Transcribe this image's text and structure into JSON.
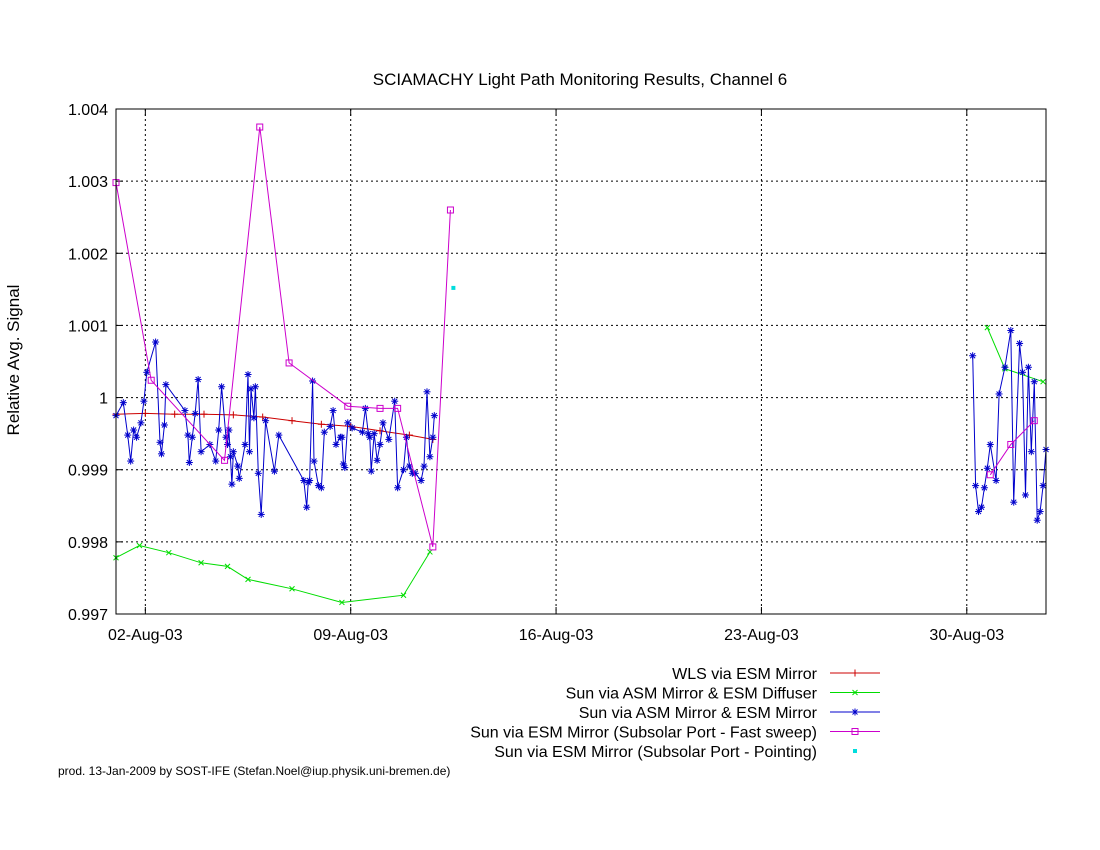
{
  "chart_data": {
    "type": "line",
    "title": "SCIAMACHY Light Path Monitoring Results, Channel 6",
    "xlabel": "",
    "ylabel": "Relative Avg. Signal",
    "xlim": [
      1.0,
      32.7
    ],
    "ylim": [
      0.997,
      1.004
    ],
    "x_unit": "day of August 2003",
    "x_ticks": [
      {
        "x": 2,
        "label": "02-Aug-03"
      },
      {
        "x": 9,
        "label": "09-Aug-03"
      },
      {
        "x": 16,
        "label": "16-Aug-03"
      },
      {
        "x": 23,
        "label": "23-Aug-03"
      },
      {
        "x": 30,
        "label": "30-Aug-03"
      }
    ],
    "y_ticks": [
      {
        "y": 0.997,
        "label": "0.997"
      },
      {
        "y": 0.998,
        "label": "0.998"
      },
      {
        "y": 0.999,
        "label": "0.999"
      },
      {
        "y": 1.0,
        "label": "1"
      },
      {
        "y": 1.001,
        "label": "1.001"
      },
      {
        "y": 1.002,
        "label": "1.002"
      },
      {
        "y": 1.003,
        "label": "1.003"
      },
      {
        "y": 1.004,
        "label": "1.004"
      }
    ],
    "grid": true,
    "legend_position": "bottom-right",
    "series": [
      {
        "name": "WLS via ESM Mirror",
        "color": "#cc0000",
        "marker": "plus",
        "line": true,
        "points": [
          [
            1.0,
            0.99977
          ],
          [
            2.0,
            0.99978
          ],
          [
            3.0,
            0.99977
          ],
          [
            4.0,
            0.99977
          ],
          [
            5.0,
            0.99976
          ],
          [
            6.0,
            0.99973
          ],
          [
            7.0,
            0.99968
          ],
          [
            8.0,
            0.99963
          ],
          [
            9.0,
            0.9996
          ],
          [
            10.0,
            0.99954
          ],
          [
            11.0,
            0.99948
          ],
          [
            11.8,
            0.99942
          ]
        ]
      },
      {
        "name": "Sun via ASM Mirror & ESM Diffuser",
        "color": "#00dd00",
        "marker": "x",
        "line": true,
        "points": [
          [
            1.0,
            0.99778
          ],
          [
            1.8,
            0.99795
          ],
          [
            2.8,
            0.99785
          ],
          [
            3.9,
            0.99771
          ],
          [
            4.8,
            0.99766
          ],
          [
            5.5,
            0.99748
          ],
          [
            7.0,
            0.99735
          ],
          [
            8.7,
            0.99716
          ],
          [
            10.8,
            0.99726
          ],
          [
            11.7,
            0.99786
          ],
          [
            30.7,
            1.00097
          ],
          [
            31.3,
            1.0004
          ],
          [
            32.6,
            1.00022
          ]
        ]
      },
      {
        "name": "Sun via ASM Mirror & ESM Mirror",
        "color": "#0000cc",
        "marker": "star",
        "line": true,
        "points": [
          [
            1.0,
            0.99975
          ],
          [
            1.25,
            0.99993
          ],
          [
            1.4,
            0.99948
          ],
          [
            1.5,
            0.99912
          ],
          [
            1.6,
            0.99955
          ],
          [
            1.7,
            0.99945
          ],
          [
            1.85,
            0.99965
          ],
          [
            1.95,
            0.99995
          ],
          [
            2.05,
            1.00035
          ],
          [
            2.35,
            1.00077
          ],
          [
            2.5,
            0.99938
          ],
          [
            2.55,
            0.99922
          ],
          [
            2.65,
            0.99962
          ],
          [
            2.7,
            1.00018
          ],
          [
            3.35,
            0.99982
          ],
          [
            3.45,
            0.99948
          ],
          [
            3.5,
            0.9991
          ],
          [
            3.6,
            0.99945
          ],
          [
            3.7,
            0.99978
          ],
          [
            3.8,
            1.00025
          ],
          [
            3.9,
            0.99925
          ],
          [
            4.2,
            0.99935
          ],
          [
            4.4,
            0.99912
          ],
          [
            4.5,
            0.99955
          ],
          [
            4.6,
            1.00015
          ],
          [
            4.75,
            0.99945
          ],
          [
            4.8,
            0.99935
          ],
          [
            4.85,
            0.99955
          ],
          [
            4.9,
            0.99918
          ],
          [
            4.95,
            0.9988
          ],
          [
            5.0,
            0.99925
          ],
          [
            5.15,
            0.99905
          ],
          [
            5.2,
            0.99888
          ],
          [
            5.4,
            0.99935
          ],
          [
            5.5,
            1.00032
          ],
          [
            5.55,
            0.99925
          ],
          [
            5.6,
            1.00012
          ],
          [
            5.7,
            0.99972
          ],
          [
            5.75,
            1.00015
          ],
          [
            5.85,
            0.99895
          ],
          [
            5.95,
            0.99838
          ],
          [
            6.1,
            0.99968
          ],
          [
            6.4,
            0.99898
          ],
          [
            6.55,
            0.99948
          ],
          [
            7.4,
            0.99885
          ],
          [
            7.5,
            0.99848
          ],
          [
            7.55,
            0.99882
          ],
          [
            7.6,
            0.99885
          ],
          [
            7.7,
            1.00023
          ],
          [
            7.75,
            0.99912
          ],
          [
            7.9,
            0.99878
          ],
          [
            8.0,
            0.99875
          ],
          [
            8.1,
            0.99952
          ],
          [
            8.3,
            0.9996
          ],
          [
            8.4,
            0.99982
          ],
          [
            8.5,
            0.99935
          ],
          [
            8.65,
            0.99945
          ],
          [
            8.7,
            0.99945
          ],
          [
            8.75,
            0.99908
          ],
          [
            8.8,
            0.99903
          ],
          [
            8.9,
            0.99965
          ],
          [
            9.05,
            0.99958
          ],
          [
            9.4,
            0.99952
          ],
          [
            9.5,
            0.99985
          ],
          [
            9.6,
            0.9995
          ],
          [
            9.65,
            0.99945
          ],
          [
            9.7,
            0.99898
          ],
          [
            9.8,
            0.9995
          ],
          [
            9.9,
            0.99913
          ],
          [
            10.0,
            0.99935
          ],
          [
            10.1,
            0.99965
          ],
          [
            10.3,
            0.99942
          ],
          [
            10.5,
            0.99995
          ],
          [
            10.6,
            0.99875
          ],
          [
            10.8,
            0.999
          ],
          [
            10.9,
            0.99945
          ],
          [
            11.0,
            0.99905
          ],
          [
            11.1,
            0.99895
          ],
          [
            11.2,
            0.99895
          ],
          [
            11.4,
            0.99885
          ],
          [
            11.5,
            0.99905
          ],
          [
            11.6,
            1.00008
          ],
          [
            11.7,
            0.99918
          ],
          [
            11.8,
            0.99945
          ],
          [
            11.85,
            0.99975
          ],
          [
            30.2,
            1.00058
          ],
          [
            30.3,
            0.99878
          ],
          [
            30.4,
            0.99842
          ],
          [
            30.5,
            0.99848
          ],
          [
            30.6,
            0.99875
          ],
          [
            30.7,
            0.99902
          ],
          [
            30.8,
            0.99935
          ],
          [
            31.0,
            0.99885
          ],
          [
            31.1,
            1.00005
          ],
          [
            31.3,
            1.00042
          ],
          [
            31.5,
            1.00093
          ],
          [
            31.6,
            0.99855
          ],
          [
            31.8,
            1.00075
          ],
          [
            31.9,
            1.00035
          ],
          [
            32.0,
            0.99865
          ],
          [
            32.1,
            1.00042
          ],
          [
            32.2,
            0.99925
          ],
          [
            32.3,
            1.00022
          ],
          [
            32.4,
            0.9983
          ],
          [
            32.5,
            0.99842
          ],
          [
            32.6,
            0.99878
          ],
          [
            32.7,
            0.99928
          ]
        ]
      },
      {
        "name": "Sun via ESM Mirror (Subsolar Port - Fast sweep)",
        "color": "#cc00cc",
        "marker": "square",
        "line": true,
        "points": [
          [
            1.0,
            1.00298
          ],
          [
            2.2,
            1.00024
          ],
          [
            4.7,
            0.99913
          ],
          [
            5.9,
            1.00375
          ],
          [
            6.9,
            1.00048
          ],
          [
            8.9,
            0.99988
          ],
          [
            10.0,
            0.99985
          ],
          [
            10.6,
            0.99985
          ],
          [
            11.8,
            0.99793
          ],
          [
            12.4,
            1.0026
          ],
          [
            30.8,
            0.99893
          ],
          [
            31.5,
            0.99935
          ],
          [
            32.3,
            0.99968
          ]
        ]
      },
      {
        "name": "Sun via ESM Mirror (Subsolar Port - Pointing)",
        "color": "#00dddd",
        "marker": "dot",
        "line": false,
        "points": [
          [
            12.5,
            1.00152
          ]
        ]
      }
    ]
  },
  "footer": "prod. 13-Jan-2009 by SOST-IFE (Stefan.Noel@iup.physik.uni-bremen.de)"
}
